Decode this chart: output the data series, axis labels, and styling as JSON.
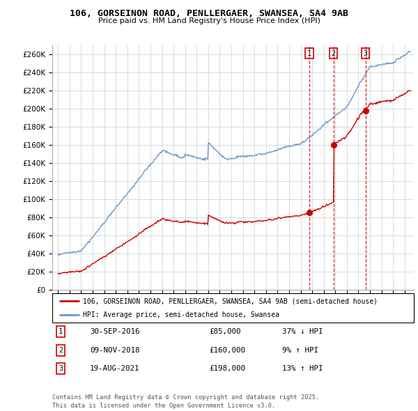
{
  "title_line1": "106, GORSEINON ROAD, PENLLERGAER, SWANSEA, SA4 9AB",
  "title_line2": "Price paid vs. HM Land Registry's House Price Index (HPI)",
  "legend_red": "106, GORSEINON ROAD, PENLLERGAER, SWANSEA, SA4 9AB (semi-detached house)",
  "legend_blue": "HPI: Average price, semi-detached house, Swansea",
  "footer_line1": "Contains HM Land Registry data © Crown copyright and database right 2025.",
  "footer_line2": "This data is licensed under the Open Government Licence v3.0.",
  "transactions": [
    {
      "num": 1,
      "date": "30-SEP-2016",
      "price": 85000,
      "pct": "37%",
      "dir": "↓",
      "x": 2016.75
    },
    {
      "num": 2,
      "date": "09-NOV-2018",
      "price": 160000,
      "pct": "9%",
      "dir": "↑",
      "x": 2018.85
    },
    {
      "num": 3,
      "date": "19-AUG-2021",
      "price": 198000,
      "pct": "13%",
      "dir": "↑",
      "x": 2021.62
    }
  ],
  "red_color": "#cc0000",
  "blue_color": "#6699cc",
  "ylim_min": 0,
  "ylim_max": 270000,
  "yticks": [
    0,
    20000,
    40000,
    60000,
    80000,
    100000,
    120000,
    140000,
    160000,
    180000,
    200000,
    220000,
    240000,
    260000
  ],
  "xlim_start": 1994.5,
  "xlim_end": 2025.8
}
